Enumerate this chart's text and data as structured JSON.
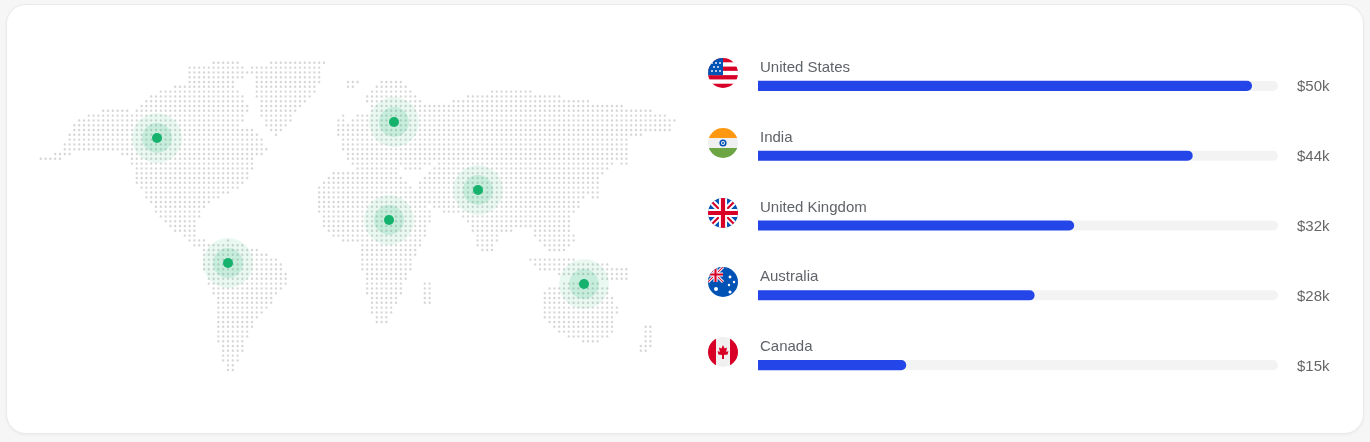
{
  "chart_data": {
    "type": "bar",
    "orientation": "horizontal",
    "categories": [
      "United States",
      "India",
      "United Kingdom",
      "Australia",
      "Canada"
    ],
    "values": [
      50,
      44,
      32,
      28,
      15
    ],
    "value_labels": [
      "$50k",
      "$44k",
      "$32k",
      "$28k",
      "$15k"
    ],
    "color": "#2446e8",
    "tick_labels": "y"
  }
}
